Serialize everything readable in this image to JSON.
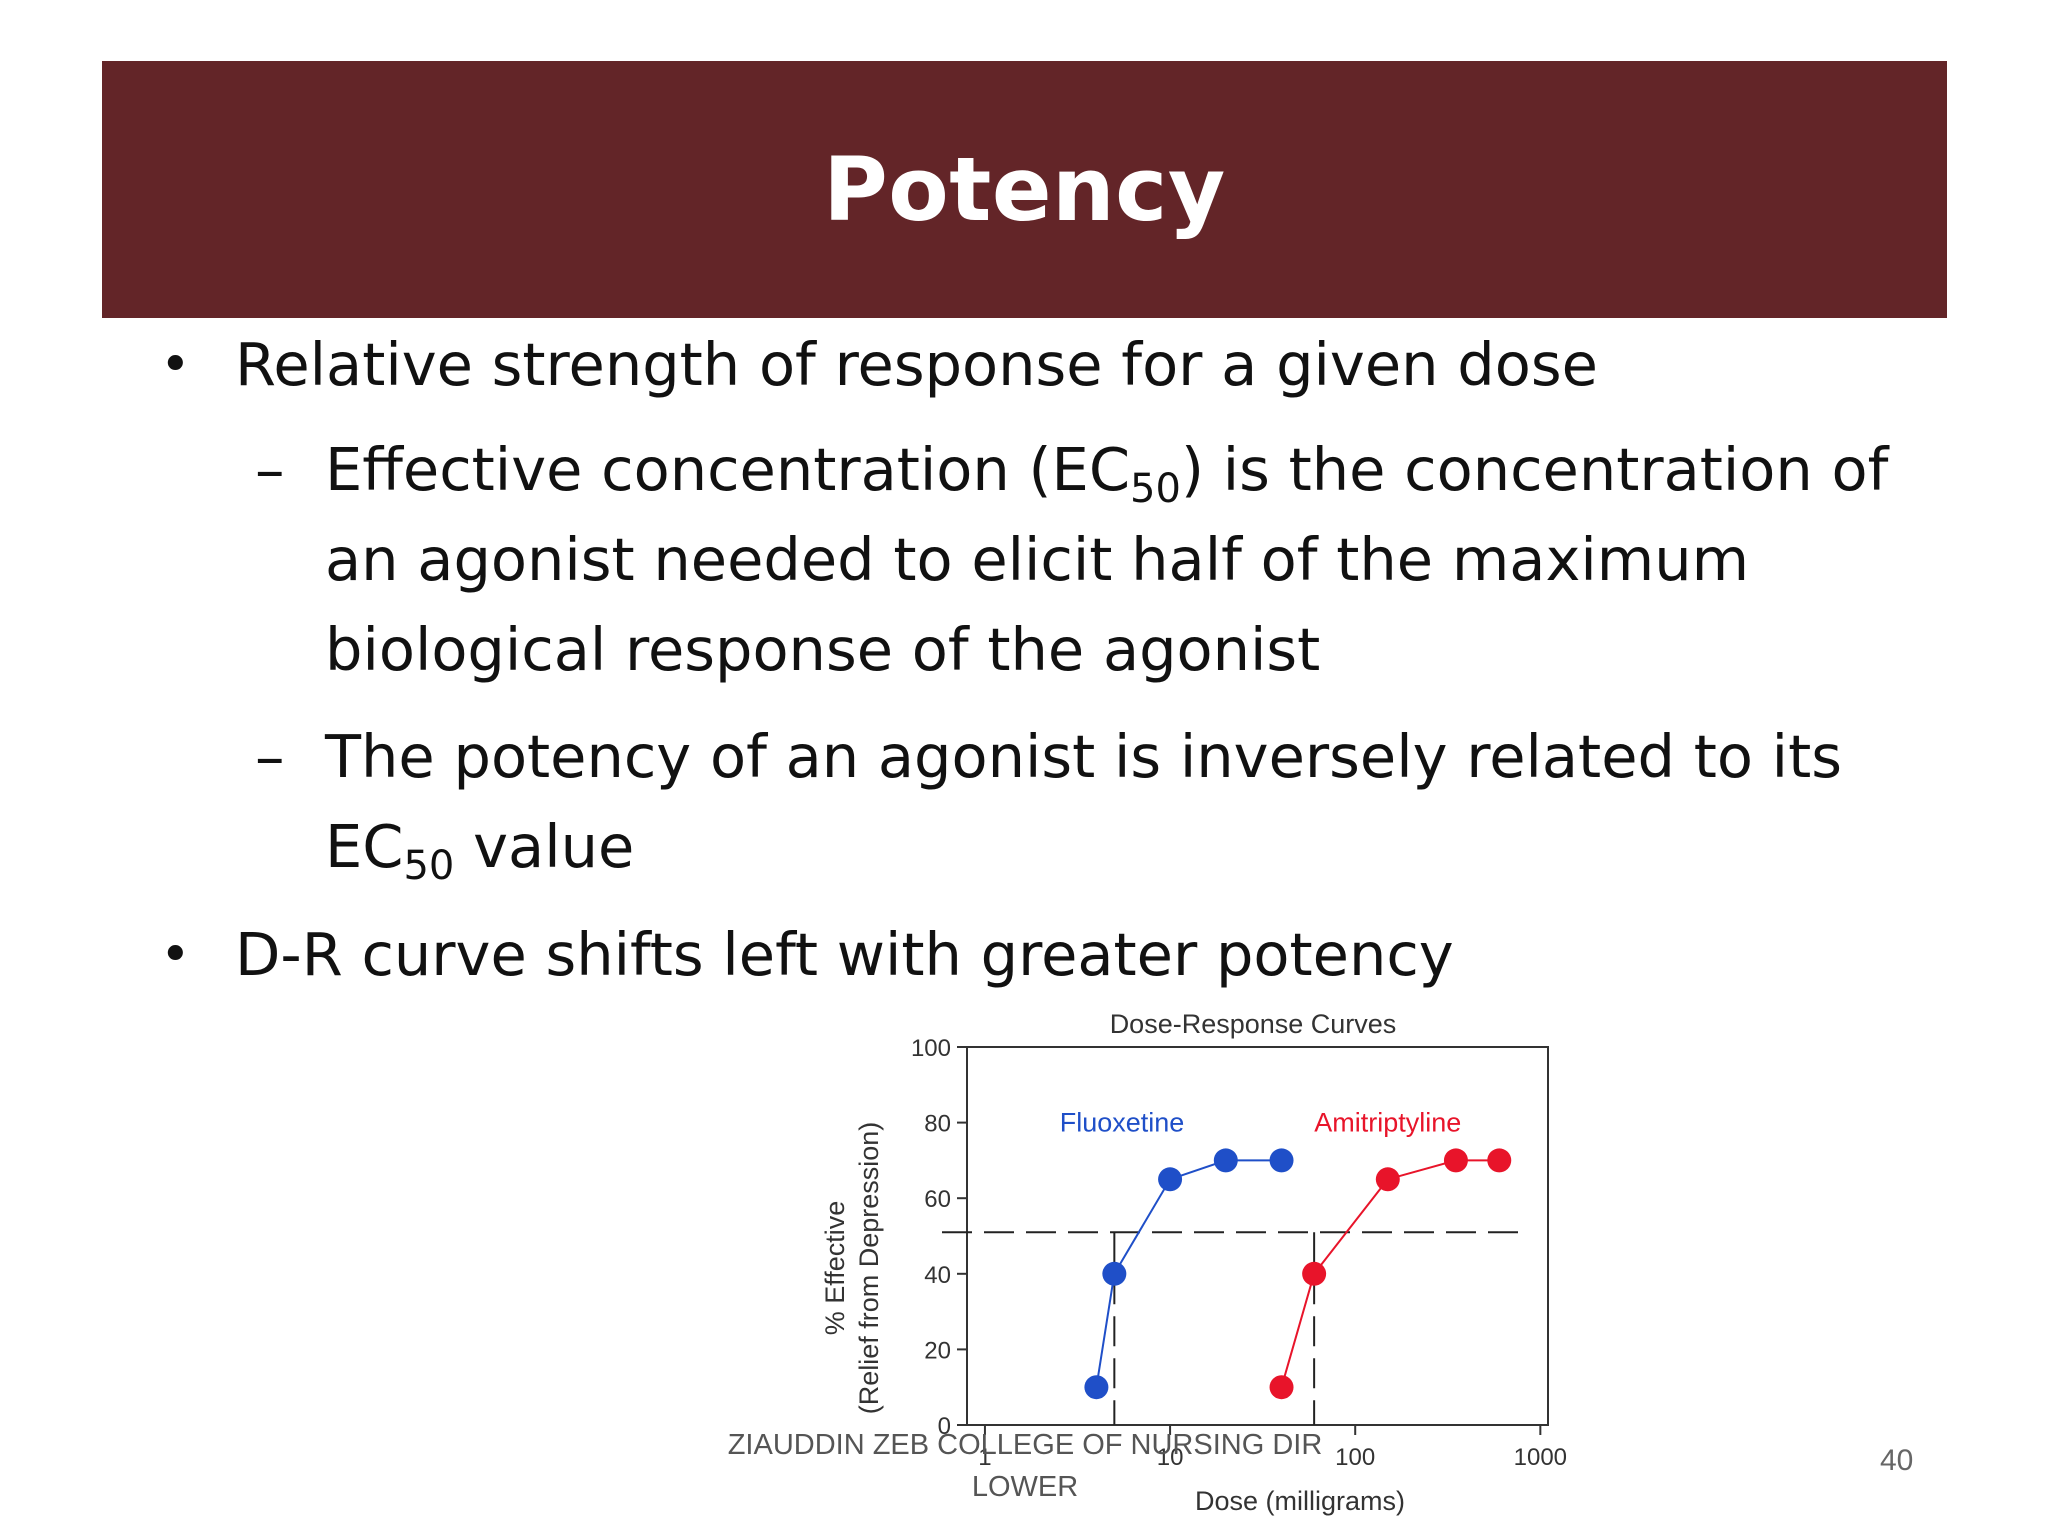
{
  "slide": {
    "title": "Potency",
    "bullets": [
      {
        "text": "Relative strength of response for a given dose",
        "subitems": [
          {
            "before_sub": "Effective concentration (EC",
            "sub": "50",
            "after_sub": ") is the concentration of an agonist needed to elicit half of the maximum biological response of the agonist"
          },
          {
            "before_sub": "The potency of an agonist is inversely related to its EC",
            "sub": "50",
            "after_sub": " value"
          }
        ]
      },
      {
        "text": "D-R curve shifts left with greater potency"
      }
    ],
    "footer": "ZIAUDDIN ZEB COLLEGE OF NURSING DIR LOWER",
    "page_number": "40"
  },
  "chart_data": {
    "type": "line",
    "title": "Dose-Response Curves",
    "xlabel": "Dose (milligrams)",
    "ylabel_line1": "% Effective",
    "ylabel_line2": "(Relief from Depression)",
    "x_scale": "log",
    "xlim": [
      0.8,
      1100
    ],
    "ylim": [
      0,
      100
    ],
    "x_ticks": [
      1,
      10,
      100,
      1000
    ],
    "x_tick_labels": [
      "1",
      "10",
      "100",
      "1000"
    ],
    "y_ticks": [
      0,
      20,
      40,
      60,
      80,
      100
    ],
    "y_tick_labels": [
      "0",
      "20",
      "40",
      "60",
      "80",
      "100"
    ],
    "grid": false,
    "series": [
      {
        "name": "Fluoxetine",
        "color": "#1f4fc8",
        "x": [
          4,
          5,
          10,
          20,
          40
        ],
        "y": [
          10,
          40,
          65,
          70,
          70
        ]
      },
      {
        "name": "Amitriptyline",
        "color": "#e8142a",
        "x": [
          40,
          60,
          150,
          350,
          600
        ],
        "y": [
          10,
          40,
          65,
          70,
          70
        ]
      }
    ],
    "reference_level": 51,
    "reference_doses": [
      5,
      60
    ]
  }
}
